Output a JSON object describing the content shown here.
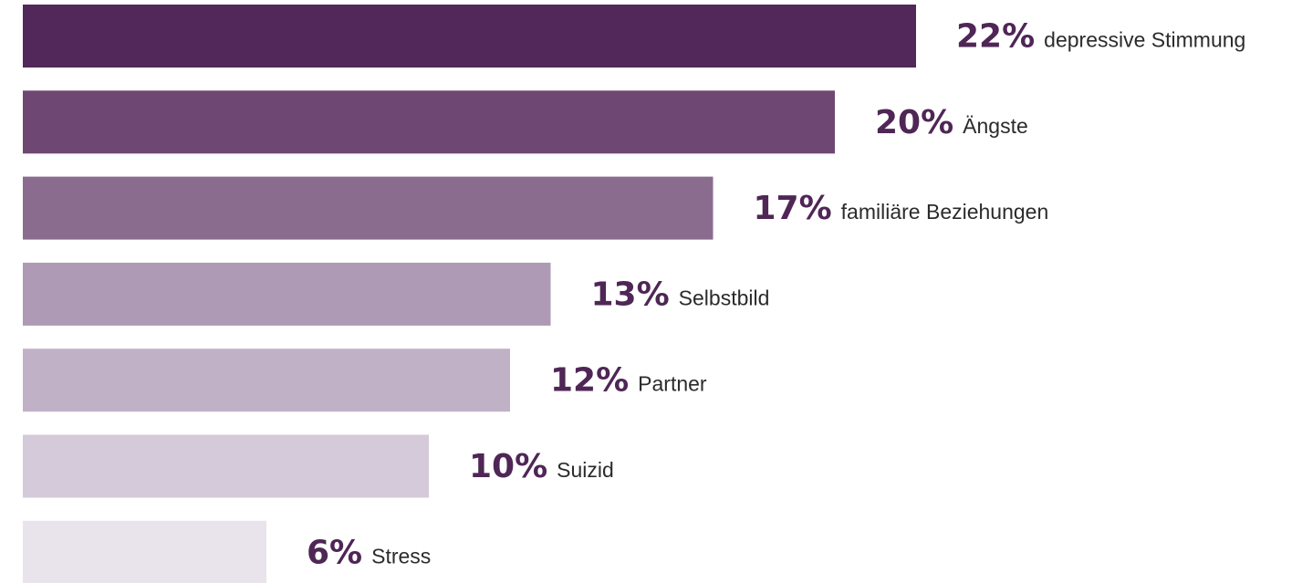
{
  "chart_data": {
    "type": "bar",
    "orientation": "horizontal",
    "grid": false,
    "legend": "none",
    "categories": [
      "depressive Stimmung",
      "Ängste",
      "familiäre Beziehungen",
      "Selbstbild",
      "Partner",
      "Suizid",
      "Stress"
    ],
    "values": [
      22,
      20,
      17,
      13,
      12,
      10,
      6
    ],
    "value_labels": [
      "22%",
      "20%",
      "17%",
      "13%",
      "12%",
      "10%",
      "6%"
    ],
    "unit": "%",
    "xlim": [
      0,
      22
    ],
    "colors": [
      "#52285a",
      "#6e4872",
      "#8a6d8e",
      "#ae9ab4",
      "#c1b1c7",
      "#d5cad9",
      "#e9e3ec"
    ],
    "label_color": "#4f2656"
  }
}
